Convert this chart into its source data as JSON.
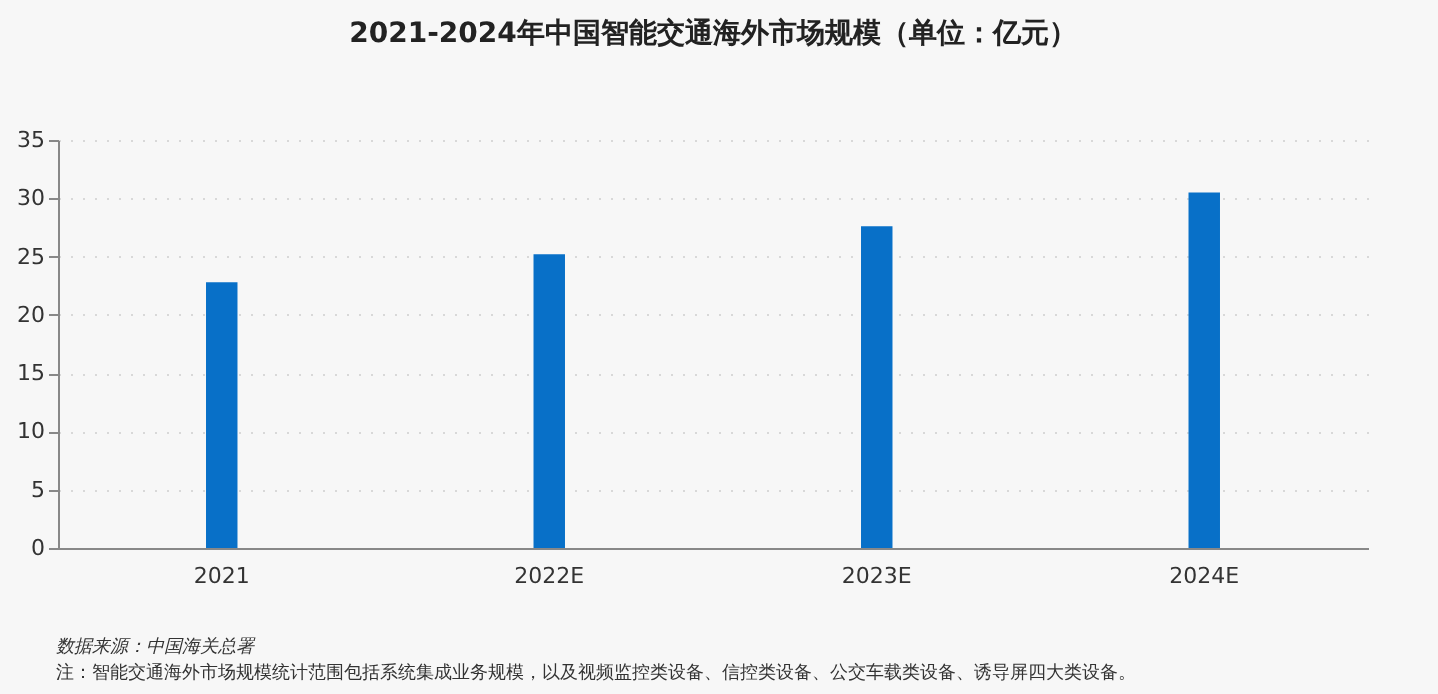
{
  "chart_data": {
    "type": "bar",
    "title": "2021-2024年中国智能交通海外市场规模（单位：亿元）",
    "categories": [
      "2021",
      "2022E",
      "2023E",
      "2024E"
    ],
    "values": [
      22.8,
      25.2,
      27.6,
      30.5
    ],
    "color": "#0870c8",
    "ylim": [
      0,
      35
    ],
    "yticks": [
      0,
      5,
      10,
      15,
      20,
      25,
      30,
      35
    ],
    "grid": "y",
    "annotations": [
      "数据来源：中国海关总署",
      "注：智能交通海外市场规模统计范围包括系统集成业务规模，以及视频监控类设备、信控类设备、公交车载类设备、诱导屏四大类设备。"
    ]
  }
}
